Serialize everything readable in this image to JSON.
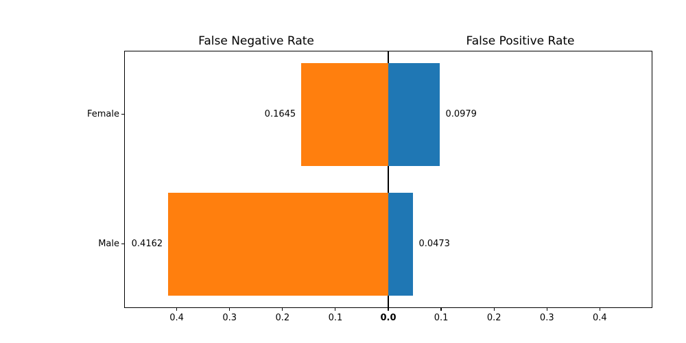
{
  "figure": {
    "background": "#ffffff"
  },
  "chart_data": {
    "type": "bar",
    "variant": "diverging-horizontal",
    "title_left": "False Negative Rate",
    "title_right": "False Positive Rate",
    "categories": [
      "Female",
      "Male"
    ],
    "series": [
      {
        "name": "False Negative Rate",
        "side": "left",
        "color": "#ff7f0e",
        "values": [
          0.1645,
          0.4162
        ],
        "labels": [
          "0.1645",
          "0.4162"
        ]
      },
      {
        "name": "False Positive Rate",
        "side": "right",
        "color": "#1f77b4",
        "values": [
          0.0979,
          0.0473
        ],
        "labels": [
          "0.0979",
          "0.0473"
        ]
      }
    ],
    "x_ticks": [
      {
        "value": -0.4,
        "label": "0.4",
        "bold": false
      },
      {
        "value": -0.3,
        "label": "0.3",
        "bold": false
      },
      {
        "value": -0.2,
        "label": "0.2",
        "bold": false
      },
      {
        "value": -0.1,
        "label": "0.1",
        "bold": false
      },
      {
        "value": 0.0,
        "label": "0.0",
        "bold": true
      },
      {
        "value": 0.1,
        "label": "0.1",
        "bold": false
      },
      {
        "value": 0.2,
        "label": "0.2",
        "bold": false
      },
      {
        "value": 0.3,
        "label": "0.3",
        "bold": false
      },
      {
        "value": 0.4,
        "label": "0.4",
        "bold": false
      }
    ],
    "xlim": [
      -0.4994,
      0.4994
    ],
    "axis_color": "#000000",
    "grid": false,
    "legend": false
  }
}
